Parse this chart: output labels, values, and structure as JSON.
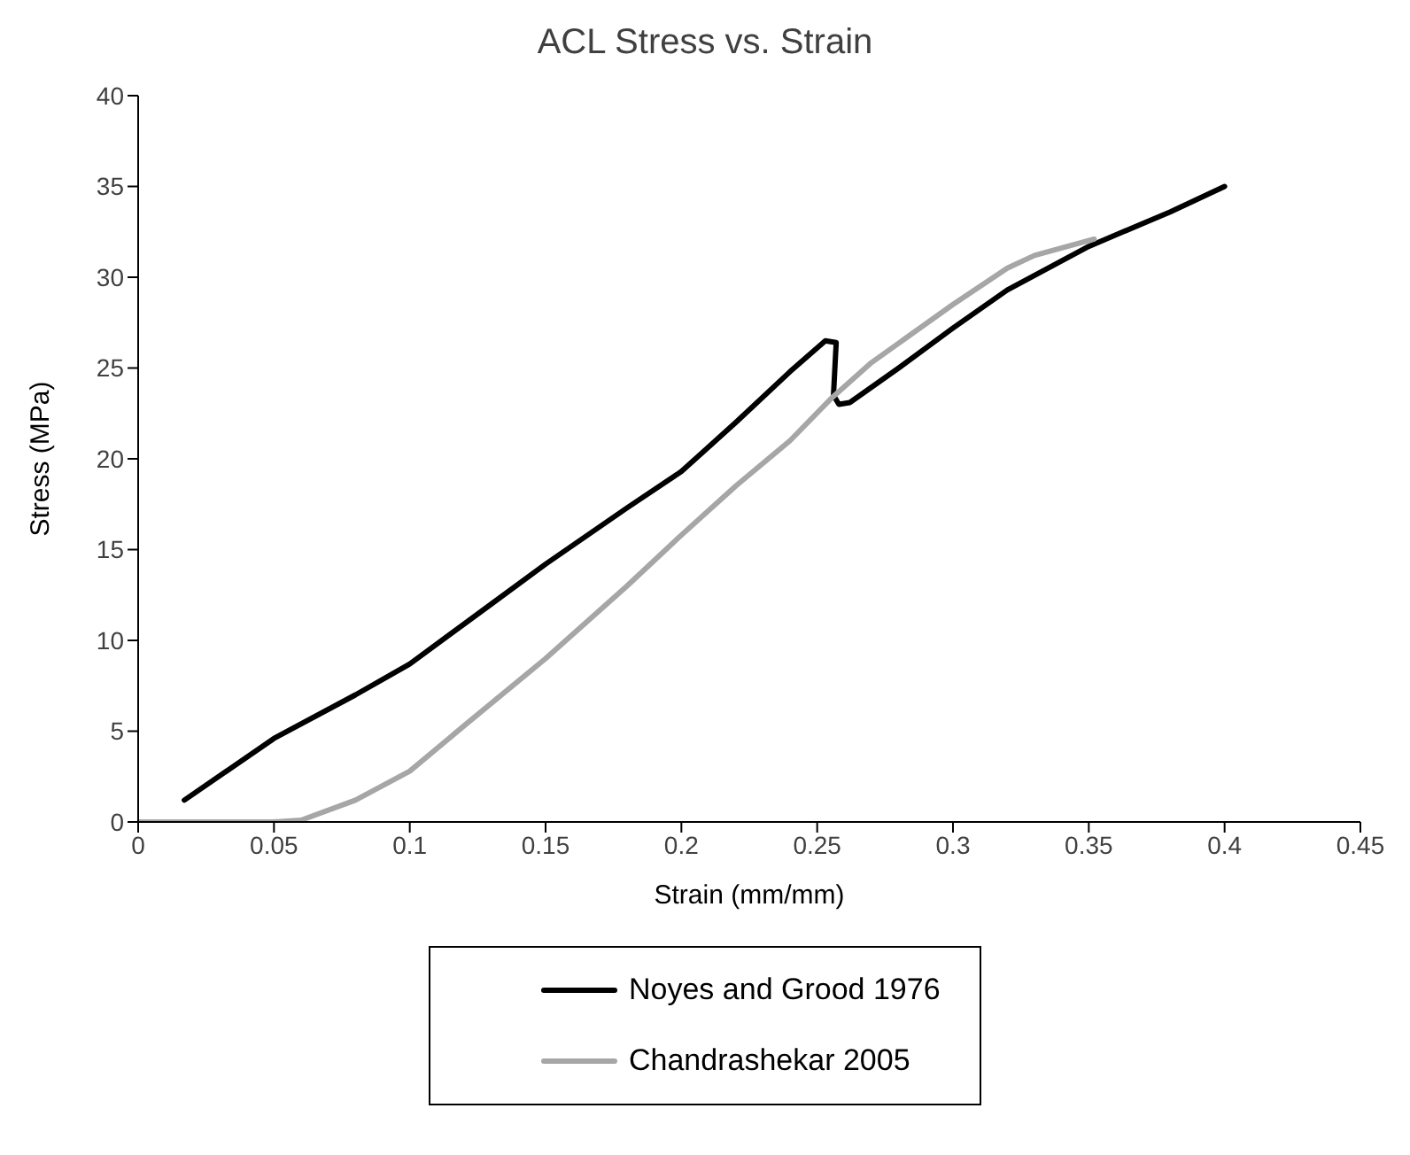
{
  "chart_data": {
    "type": "line",
    "title": "ACL Stress vs. Strain",
    "xlabel": "Strain (mm/mm)",
    "ylabel": "Stress (MPa)",
    "xlim": [
      0,
      0.45
    ],
    "xticks": [
      0,
      0.05,
      0.1,
      0.15,
      0.2,
      0.25,
      0.3,
      0.35,
      0.4,
      0.45
    ],
    "ylim": [
      0,
      40
    ],
    "yticks": [
      0,
      5,
      10,
      15,
      20,
      25,
      30,
      35,
      40
    ],
    "grid": false,
    "legend": "bottom",
    "marker": "none",
    "line_style": "solid",
    "series": [
      {
        "name": "Noyes and Grood 1976",
        "color": "#000000",
        "x": [
          0.017,
          0.05,
          0.08,
          0.1,
          0.13,
          0.15,
          0.18,
          0.2,
          0.22,
          0.24,
          0.253,
          0.257,
          0.256,
          0.258,
          0.262,
          0.28,
          0.3,
          0.32,
          0.35,
          0.38,
          0.4
        ],
        "values": [
          1.2,
          4.6,
          7,
          8.7,
          12,
          14.2,
          17.3,
          19.3,
          22,
          24.8,
          26.5,
          26.4,
          23.5,
          23,
          23.1,
          25,
          27.2,
          29.3,
          31.7,
          33.6,
          35
        ]
      },
      {
        "name": "Chandrashekar 2005",
        "color": "#a6a6a6",
        "x": [
          0,
          0.05,
          0.06,
          0.08,
          0.1,
          0.12,
          0.15,
          0.18,
          0.2,
          0.22,
          0.24,
          0.255,
          0.27,
          0.3,
          0.32,
          0.33,
          0.352
        ],
        "values": [
          0,
          0,
          0.1,
          1.2,
          2.8,
          5.3,
          9,
          13,
          15.8,
          18.5,
          21,
          23.3,
          25.3,
          28.5,
          30.5,
          31.2,
          32.1
        ]
      }
    ]
  }
}
